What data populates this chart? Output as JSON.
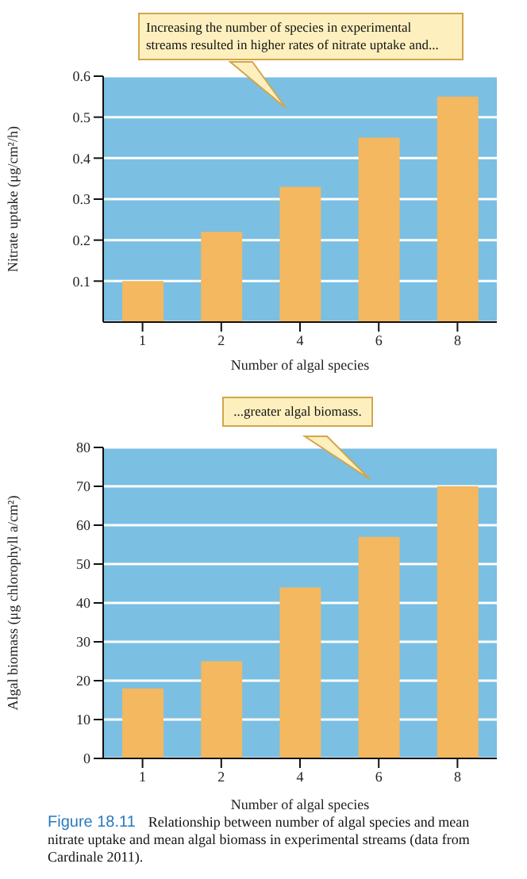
{
  "chart_data": [
    {
      "type": "bar",
      "categories": [
        "1",
        "2",
        "4",
        "6",
        "8"
      ],
      "values": [
        0.1,
        0.22,
        0.33,
        0.45,
        0.55
      ],
      "color": "#f3b860",
      "xlabel": "Number of algal species",
      "ylabel": "Nitrate uptake (μg/cm²/h)",
      "ylim": [
        0,
        0.6
      ],
      "yticks": [
        0.1,
        0.2,
        0.3,
        0.4,
        0.5,
        0.6
      ],
      "grid": "y",
      "legend": false,
      "annotations": [
        "Increasing the number of species in experimental streams resulted in higher rates of nitrate uptake and..."
      ]
    },
    {
      "type": "bar",
      "categories": [
        "1",
        "2",
        "4",
        "6",
        "8"
      ],
      "values": [
        18,
        25,
        44,
        57,
        70
      ],
      "color": "#f3b860",
      "xlabel": "Number of algal species",
      "ylabel": "Algal biomass (μg chlorophyll a/cm²)",
      "ylim": [
        0,
        80
      ],
      "yticks": [
        0,
        10,
        20,
        30,
        40,
        50,
        60,
        70,
        80
      ],
      "grid": "y",
      "legend": false,
      "annotations": [
        "...greater algal biomass.",
        "Figure 18.11",
        "Relationship between number of algal species and mean nitrate uptake and mean algal biomass in experimental streams (data from Cardinale 2011)."
      ]
    }
  ]
}
